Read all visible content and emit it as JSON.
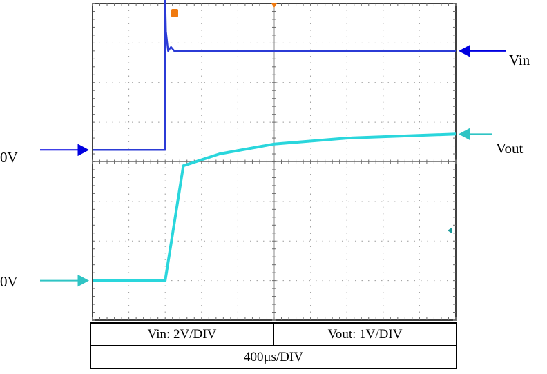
{
  "chart_data": {
    "type": "line",
    "title": "",
    "x_divisions": 10,
    "y_divisions": 8,
    "grid": true,
    "series": [
      {
        "name": "Vin",
        "color": "#2b3bd6",
        "volts_per_div": 2,
        "zero_level_div": 4.3,
        "points_div": [
          [
            0,
            0
          ],
          [
            2.0,
            0
          ],
          [
            2.0,
            3.9
          ],
          [
            2.02,
            3.0
          ],
          [
            2.08,
            2.5
          ],
          [
            2.16,
            2.6
          ],
          [
            2.25,
            2.5
          ],
          [
            10,
            2.5
          ]
        ]
      },
      {
        "name": "Vout",
        "color": "#2ad6dc",
        "volts_per_div": 1,
        "zero_level_div": 1.0,
        "points_div": [
          [
            0,
            0
          ],
          [
            2.0,
            0
          ],
          [
            2.5,
            2.9
          ],
          [
            3.5,
            3.2
          ],
          [
            5.0,
            3.45
          ],
          [
            7.0,
            3.6
          ],
          [
            10,
            3.7
          ]
        ]
      }
    ],
    "channel_labels": {
      "vin": "Vin",
      "vout": "Vout",
      "zero_left_1": "0V",
      "zero_left_2": "0V"
    },
    "scale_table": {
      "vin_scale": "Vin: 2V/DIV",
      "vout_scale": "Vout: 1V/DIV",
      "time_scale": "400µs/DIV"
    }
  }
}
